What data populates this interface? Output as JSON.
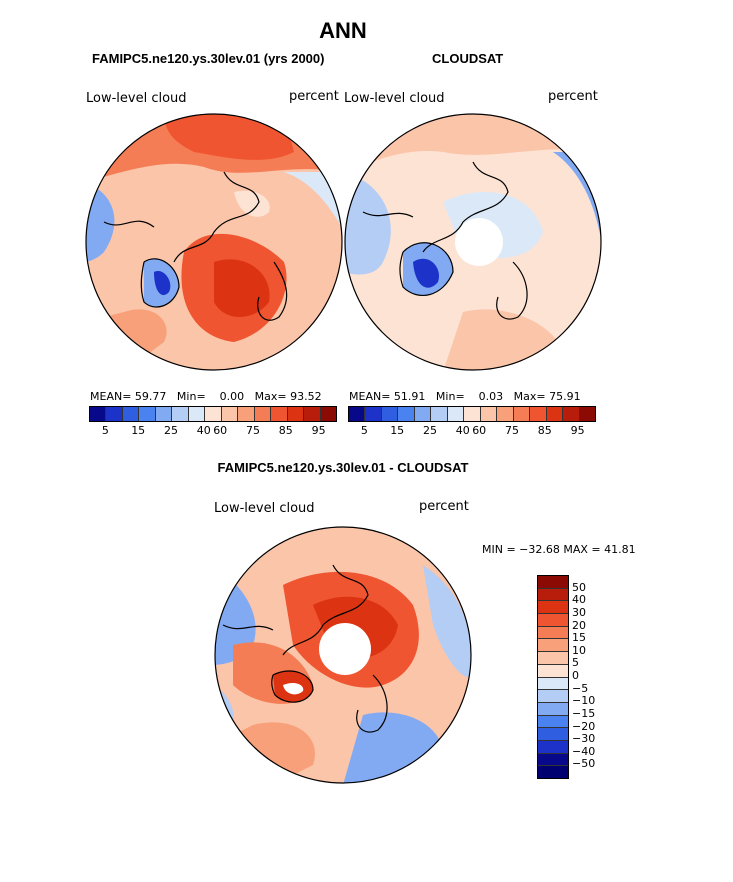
{
  "page": {
    "title": "ANN"
  },
  "panels": [
    {
      "model": "FAMIPC5.ne120.ys.30lev.01 (yrs 2000)",
      "var_label": "Low-level cloud",
      "units": "percent",
      "stats": {
        "mean_label": "MEAN=",
        "mean": "59.77",
        "min_label": "Min=",
        "min": "0.00",
        "max_label": "Max=",
        "max": "93.52"
      }
    },
    {
      "model": "CLOUDSAT",
      "var_label": "Low-level cloud",
      "units": "percent",
      "stats": {
        "mean_label": "MEAN=",
        "mean": "51.91",
        "min_label": "Min=",
        "min": "0.03",
        "max_label": "Max=",
        "max": "75.91"
      }
    }
  ],
  "diff": {
    "title": "FAMIPC5.ne120.ys.30lev.01 - CLOUDSAT",
    "var_label": "Low-level cloud",
    "units": "percent",
    "minmax": "MIN = −32.68 MAX =  41.81"
  },
  "colors": {
    "abs_scale": [
      "#08088a",
      "#1c32c8",
      "#2f5ee0",
      "#4a82f0",
      "#82aaf2",
      "#b4cdf4",
      "#dbe8f8",
      "#fde3d4",
      "#fbc5aa",
      "#f8a07a",
      "#f57d55",
      "#ef5530",
      "#dc3413",
      "#b81c0a",
      "#8c0a04"
    ],
    "diff_scale": [
      "#8c0a04",
      "#b81c0a",
      "#dc3413",
      "#ef5530",
      "#f57d55",
      "#f8a07a",
      "#fbc5aa",
      "#fde3d4",
      "#dbe8f8",
      "#b4cdf4",
      "#82aaf2",
      "#4a82f0",
      "#2f5ee0",
      "#1c32c8",
      "#08088a",
      "#000070"
    ]
  },
  "chart_data": [
    {
      "type": "heatmap",
      "title": "Low-level cloud (FAMIPC5.ne120.ys.30lev.01, yrs 2000)",
      "units": "percent",
      "projection": "polar stereographic, North Pole",
      "colorbar_ticks": [
        "5",
        "15",
        "25",
        "40",
        "60",
        "75",
        "85",
        "95"
      ],
      "mean": 59.77,
      "min": 0.0,
      "max": 93.52
    },
    {
      "type": "heatmap",
      "title": "Low-level cloud (CLOUDSAT)",
      "units": "percent",
      "projection": "polar stereographic, North Pole",
      "colorbar_ticks": [
        "5",
        "15",
        "25",
        "40",
        "60",
        "75",
        "85",
        "95"
      ],
      "mean": 51.91,
      "min": 0.03,
      "max": 75.91
    },
    {
      "type": "heatmap",
      "title": "FAMIPC5.ne120.ys.30lev.01 - CLOUDSAT",
      "units": "percent",
      "projection": "polar stereographic, North Pole",
      "colorbar_ticks": [
        "50",
        "40",
        "30",
        "20",
        "15",
        "10",
        "5",
        "0",
        "−5",
        "−10",
        "−15",
        "−20",
        "−30",
        "−40",
        "−50"
      ],
      "min": -32.68,
      "max": 41.81
    }
  ]
}
